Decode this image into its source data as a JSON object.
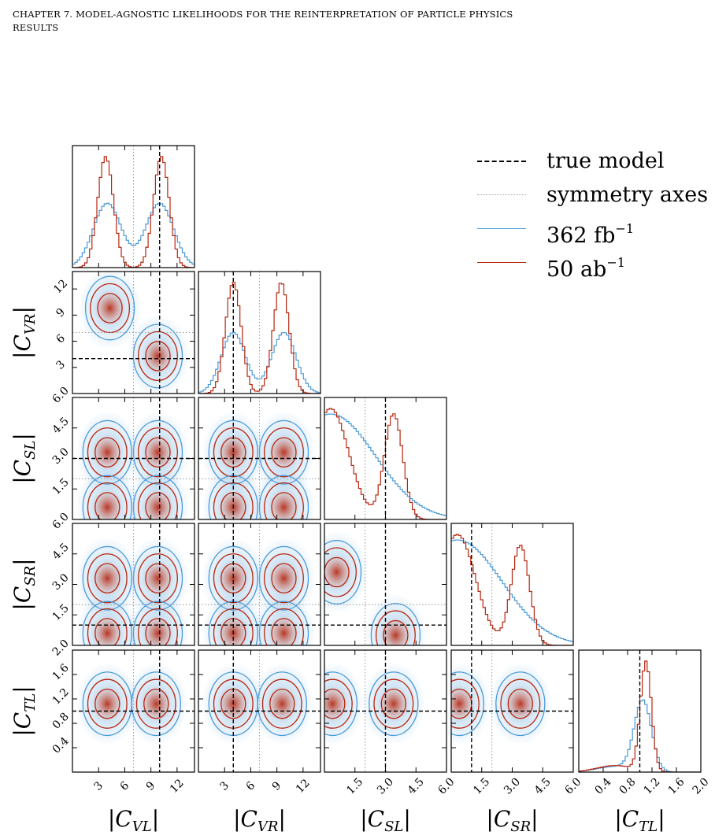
{
  "header": {
    "line1": "CHAPTER 7.  MODEL-AGNOSTIC LIKELIHOODS FOR THE REINTERPRETATION OF PARTICLE PHYSICS",
    "line2": "RESULTS"
  },
  "legend": {
    "placement": "top-right",
    "items": [
      {
        "key": "true",
        "label": "true model",
        "style": "dashed",
        "color": "#000000"
      },
      {
        "key": "sym",
        "label": "symmetry axes",
        "style": "dotted",
        "color": "#a0a0a0"
      },
      {
        "key": "b362",
        "label": "362 fb",
        "sup": "−1",
        "style": "solid",
        "color": "#4a9ad8"
      },
      {
        "key": "r50",
        "label": "50 ab",
        "sup": "−1",
        "style": "solid",
        "color": "#b8250e"
      }
    ]
  },
  "colors": {
    "blue": "#4a9ad8",
    "red": "#b8250e",
    "sym": "#a0a0a0"
  },
  "chart_data": {
    "type": "corner",
    "parameters": [
      {
        "key": "CVL",
        "label": "|C",
        "sub": "VL",
        "range": [
          0,
          14
        ],
        "ticks": [
          "3",
          "6",
          "9",
          "12"
        ],
        "tick_values": [
          3,
          6,
          9,
          12
        ],
        "true": 10.0,
        "sym": 7.0
      },
      {
        "key": "CVR",
        "label": "|C",
        "sub": "VR",
        "range": [
          0,
          14
        ],
        "ticks": [
          "3",
          "6",
          "9",
          "12"
        ],
        "tick_values": [
          3,
          6,
          9,
          12
        ],
        "true": 4.0,
        "sym": 7.0
      },
      {
        "key": "CSL",
        "label": "|C",
        "sub": "SL",
        "range": [
          0,
          6
        ],
        "ticks": [
          "1.5",
          "3.0",
          "4.5",
          "6.0"
        ],
        "tick_values": [
          1.5,
          3.0,
          4.5,
          6.0
        ],
        "true": 3.0,
        "sym": 2.0
      },
      {
        "key": "CSR",
        "label": "|C",
        "sub": "SR",
        "range": [
          0,
          6
        ],
        "ticks": [
          "1.5",
          "3.0",
          "4.5",
          "6.0"
        ],
        "tick_values": [
          1.5,
          3.0,
          4.5,
          6.0
        ],
        "true": 1.0,
        "sym": 2.0
      },
      {
        "key": "CTL",
        "label": "|C",
        "sub": "TL",
        "range": [
          0,
          2
        ],
        "ticks": [
          "0.4",
          "0.8",
          "1.2",
          "1.6",
          "2.0"
        ],
        "tick_values": [
          0.4,
          0.8,
          1.2,
          1.6,
          2.0
        ],
        "true": 1.0,
        "sym": null
      }
    ],
    "series": [
      {
        "name": "362 fb−1",
        "color": "#4a9ad8"
      },
      {
        "name": "50 ab−1",
        "color": "#b8250e"
      }
    ],
    "marginals": [
      {
        "param": "CVL",
        "blue": [
          {
            "center": 4.0,
            "width": 1.6,
            "weight": 1.0
          },
          {
            "center": 10.0,
            "width": 1.6,
            "weight": 1.0
          }
        ],
        "red": [
          {
            "center": 3.8,
            "width": 0.9,
            "weight": 1.0
          },
          {
            "center": 10.2,
            "width": 0.9,
            "weight": 1.0
          }
        ],
        "blue_peak": 0.58,
        "red_peak": 1.0
      },
      {
        "param": "CVR",
        "blue": [
          {
            "center": 4.0,
            "width": 1.4,
            "weight": 1.0
          },
          {
            "center": 9.8,
            "width": 1.4,
            "weight": 1.0
          }
        ],
        "red": [
          {
            "center": 4.0,
            "width": 0.9,
            "weight": 1.0
          },
          {
            "center": 9.5,
            "width": 0.9,
            "weight": 1.0
          }
        ],
        "blue_peak": 0.55,
        "red_peak": 1.0
      },
      {
        "param": "CSL",
        "blue": [
          {
            "center": 0.3,
            "width": 2.2,
            "weight": 1.0
          }
        ],
        "red": [
          {
            "center": 0.3,
            "width": 0.9,
            "weight": 1.0
          },
          {
            "center": 3.4,
            "width": 0.45,
            "weight": 0.95
          }
        ],
        "blue_peak": 0.95,
        "red_peak": 1.0
      },
      {
        "param": "CSR",
        "blue": [
          {
            "center": 0.3,
            "width": 2.2,
            "weight": 1.0
          }
        ],
        "red": [
          {
            "center": 0.3,
            "width": 0.9,
            "weight": 1.0
          },
          {
            "center": 3.4,
            "width": 0.45,
            "weight": 0.9
          }
        ],
        "blue_peak": 0.95,
        "red_peak": 1.0
      },
      {
        "param": "CTL",
        "blue": [
          {
            "center": 1.05,
            "width": 0.14,
            "weight": 1.0
          },
          {
            "center": 0.6,
            "width": 0.3,
            "weight": 0.08
          }
        ],
        "red": [
          {
            "center": 1.1,
            "width": 0.09,
            "weight": 1.0
          },
          {
            "center": 0.6,
            "width": 0.3,
            "weight": 0.06
          }
        ],
        "blue_peak": 0.65,
        "red_peak": 1.0
      }
    ],
    "density_modes": [
      {
        "x": "CVL",
        "y": "CVR",
        "modes": [
          [
            4.3,
            9.8
          ],
          [
            9.8,
            4.3
          ]
        ]
      },
      {
        "x": "CVL",
        "y": "CSL",
        "modes": [
          [
            4.0,
            3.3
          ],
          [
            9.8,
            3.3
          ],
          [
            4.0,
            0.6
          ],
          [
            9.8,
            0.6
          ]
        ]
      },
      {
        "x": "CVR",
        "y": "CSL",
        "modes": [
          [
            4.0,
            3.3
          ],
          [
            9.8,
            3.3
          ],
          [
            4.0,
            0.6
          ],
          [
            9.8,
            0.6
          ]
        ]
      },
      {
        "x": "CSL",
        "y": "CSR",
        "modes": [
          [
            0.6,
            3.6
          ],
          [
            3.5,
            0.5
          ]
        ]
      },
      {
        "x": "CVL",
        "y": "CSR",
        "modes": [
          [
            4.0,
            3.3
          ],
          [
            9.8,
            3.3
          ],
          [
            4.0,
            0.6
          ],
          [
            9.8,
            0.6
          ]
        ]
      },
      {
        "x": "CVR",
        "y": "CSR",
        "modes": [
          [
            4.0,
            3.3
          ],
          [
            9.8,
            3.3
          ],
          [
            4.0,
            0.6
          ],
          [
            9.8,
            0.6
          ]
        ]
      },
      {
        "x": "CVL",
        "y": "CTL",
        "modes": [
          [
            4.0,
            1.12
          ],
          [
            9.6,
            1.12
          ]
        ]
      },
      {
        "x": "CVR",
        "y": "CTL",
        "modes": [
          [
            4.0,
            1.12
          ],
          [
            9.6,
            1.12
          ]
        ]
      },
      {
        "x": "CSL",
        "y": "CTL",
        "modes": [
          [
            0.4,
            1.12
          ],
          [
            3.4,
            1.12
          ]
        ]
      },
      {
        "x": "CSR",
        "y": "CTL",
        "modes": [
          [
            0.4,
            1.12
          ],
          [
            3.4,
            1.12
          ]
        ]
      }
    ],
    "grid": false,
    "legend_placement": "top-right"
  }
}
